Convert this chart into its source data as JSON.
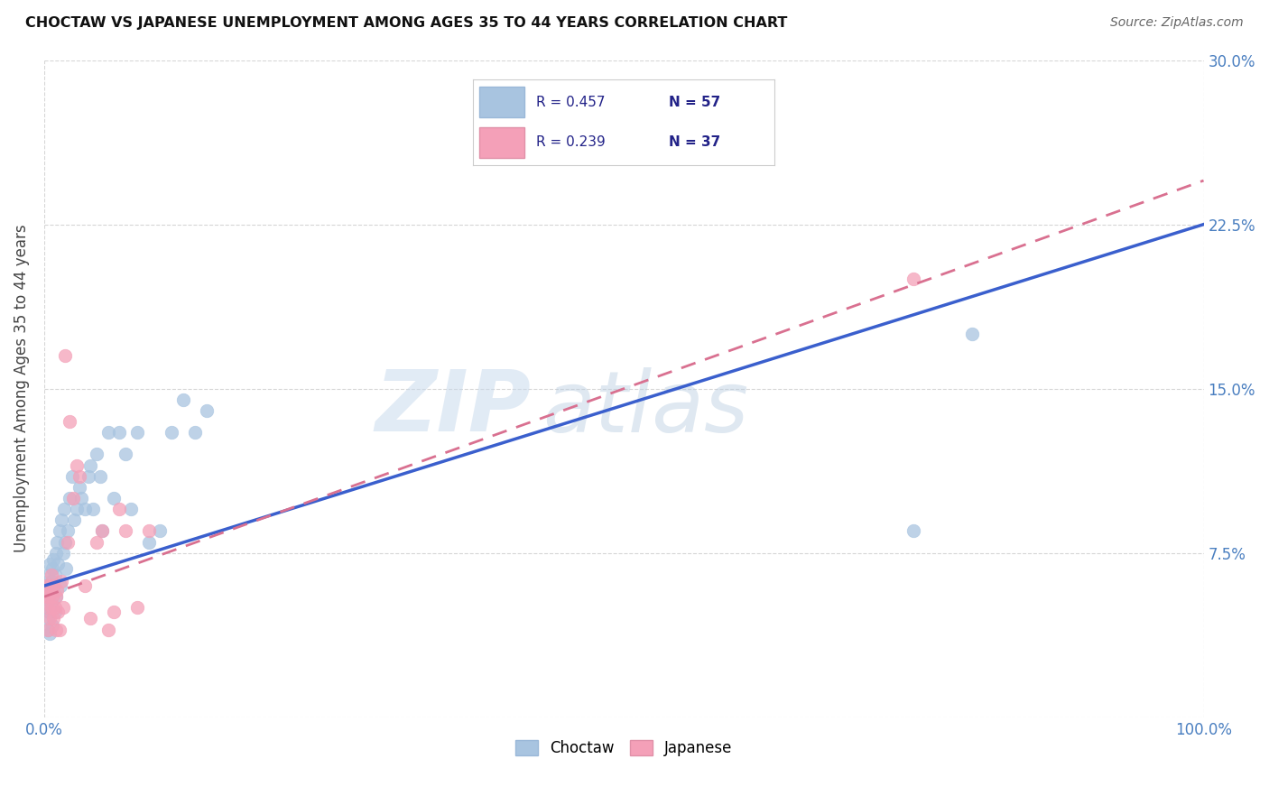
{
  "title": "CHOCTAW VS JAPANESE UNEMPLOYMENT AMONG AGES 35 TO 44 YEARS CORRELATION CHART",
  "source": "Source: ZipAtlas.com",
  "ylabel": "Unemployment Among Ages 35 to 44 years",
  "watermark_zip": "ZIP",
  "watermark_atlas": "atlas",
  "ytick_labels": [
    "",
    "7.5%",
    "15.0%",
    "22.5%",
    "30.0%"
  ],
  "ytick_values": [
    0.0,
    0.075,
    0.15,
    0.225,
    0.3
  ],
  "xlim": [
    0.0,
    1.0
  ],
  "ylim": [
    0.0,
    0.3
  ],
  "choctaw_color": "#a8c4e0",
  "choctaw_edge": "#a8c4e0",
  "japanese_color": "#f4a0b8",
  "japanese_edge": "#f4a0b8",
  "line_choctaw_color": "#3a5fcd",
  "line_japanese_color": "#d97090",
  "choctaw_x": [
    0.001,
    0.002,
    0.002,
    0.003,
    0.003,
    0.003,
    0.004,
    0.004,
    0.005,
    0.005,
    0.006,
    0.006,
    0.007,
    0.007,
    0.008,
    0.008,
    0.009,
    0.009,
    0.01,
    0.01,
    0.011,
    0.012,
    0.013,
    0.014,
    0.015,
    0.016,
    0.017,
    0.018,
    0.019,
    0.02,
    0.022,
    0.024,
    0.026,
    0.028,
    0.03,
    0.032,
    0.035,
    0.038,
    0.04,
    0.042,
    0.045,
    0.048,
    0.05,
    0.055,
    0.06,
    0.065,
    0.07,
    0.075,
    0.08,
    0.09,
    0.1,
    0.11,
    0.12,
    0.13,
    0.14,
    0.75,
    0.8
  ],
  "choctaw_y": [
    0.06,
    0.055,
    0.05,
    0.045,
    0.065,
    0.04,
    0.058,
    0.048,
    0.07,
    0.038,
    0.062,
    0.052,
    0.068,
    0.042,
    0.072,
    0.058,
    0.065,
    0.048,
    0.075,
    0.055,
    0.08,
    0.07,
    0.085,
    0.06,
    0.09,
    0.075,
    0.095,
    0.08,
    0.068,
    0.085,
    0.1,
    0.11,
    0.09,
    0.095,
    0.105,
    0.1,
    0.095,
    0.11,
    0.115,
    0.095,
    0.12,
    0.11,
    0.085,
    0.13,
    0.1,
    0.13,
    0.12,
    0.095,
    0.13,
    0.08,
    0.085,
    0.13,
    0.145,
    0.13,
    0.14,
    0.085,
    0.175
  ],
  "japanese_x": [
    0.001,
    0.002,
    0.003,
    0.003,
    0.004,
    0.005,
    0.005,
    0.006,
    0.006,
    0.007,
    0.008,
    0.008,
    0.009,
    0.01,
    0.01,
    0.011,
    0.012,
    0.013,
    0.015,
    0.016,
    0.018,
    0.02,
    0.022,
    0.025,
    0.028,
    0.03,
    0.035,
    0.04,
    0.045,
    0.05,
    0.055,
    0.06,
    0.065,
    0.07,
    0.08,
    0.09,
    0.75
  ],
  "japanese_y": [
    0.06,
    0.055,
    0.05,
    0.04,
    0.055,
    0.045,
    0.06,
    0.065,
    0.05,
    0.055,
    0.045,
    0.06,
    0.05,
    0.055,
    0.04,
    0.058,
    0.048,
    0.04,
    0.062,
    0.05,
    0.165,
    0.08,
    0.135,
    0.1,
    0.115,
    0.11,
    0.06,
    0.045,
    0.08,
    0.085,
    0.04,
    0.048,
    0.095,
    0.085,
    0.05,
    0.085,
    0.2
  ],
  "legend_items": [
    {
      "color": "#a8c4e0",
      "R": "R = 0.457",
      "N": "N = 57"
    },
    {
      "color": "#f4a0b8",
      "R": "R = 0.239",
      "N": "N = 37"
    }
  ]
}
